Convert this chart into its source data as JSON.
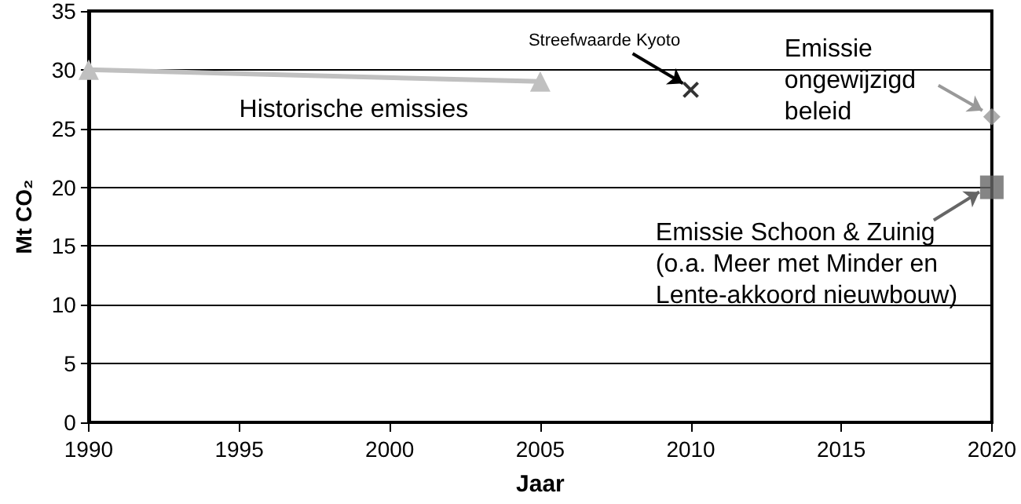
{
  "chart_data": {
    "type": "line",
    "xlabel": "Jaar",
    "ylabel": "Mt CO₂",
    "xlim": [
      1990,
      2020
    ],
    "xticks": [
      1990,
      1995,
      2000,
      2005,
      2010,
      2015,
      2020
    ],
    "ylim": [
      0,
      35
    ],
    "yticks": [
      0,
      5,
      10,
      15,
      20,
      25,
      30,
      35
    ],
    "grid": "y",
    "series": [
      {
        "color": "#c0c0c0",
        "marker": "triangle",
        "x": [
          1990,
          2005
        ],
        "values": [
          30,
          29
        ]
      },
      {
        "type": "scatter",
        "color": "#000000",
        "marker": "cross",
        "x": [
          2010
        ],
        "values": [
          28.3
        ]
      },
      {
        "type": "scatter",
        "color": "#999999",
        "marker": "diamond",
        "x": [
          2020
        ],
        "values": [
          26
        ]
      },
      {
        "type": "scatter",
        "color": "#666666",
        "marker": "square",
        "x": [
          2020
        ],
        "values": [
          20
        ]
      }
    ],
    "annotations": [
      {
        "text": "Historische emissies",
        "x": 1997.5,
        "y": 29.5
      },
      {
        "text": "Streefwaarde Kyoto",
        "x": 2010,
        "y": 28.3
      },
      {
        "text": "Emissie\nongewijzigd\nbeleid",
        "x": 2020,
        "y": 26
      },
      {
        "text": "Emissie Schoon & Zuinig\n(o.a. Meer met Minder en\nLente-akkoord nieuwbouw)",
        "x": 2020,
        "y": 20
      }
    ]
  }
}
